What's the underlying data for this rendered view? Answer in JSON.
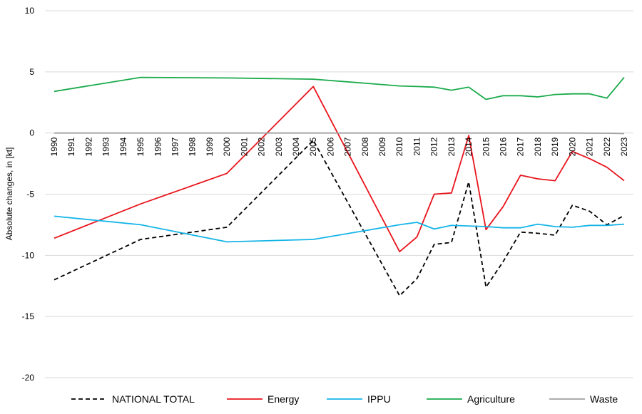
{
  "chart_data": {
    "type": "line",
    "title": "",
    "xlabel": "",
    "ylabel": "Absolute changes, in [kt]",
    "ylim": [
      -20,
      10
    ],
    "yticks": [
      10,
      5,
      0,
      -5,
      -10,
      -15,
      -20
    ],
    "grid": "horizontal",
    "legend": "bottom",
    "categories": [
      "1990",
      "1991",
      "1992",
      "1993",
      "1994",
      "1995",
      "1996",
      "1997",
      "1998",
      "1999",
      "2000",
      "2001",
      "2002",
      "2003",
      "2004",
      "2005",
      "2006",
      "2007",
      "2008",
      "2009",
      "2010",
      "2011",
      "2012",
      "2013",
      "2014",
      "2015",
      "2016",
      "2017",
      "2018",
      "2019",
      "2020",
      "2021",
      "2022",
      "2023"
    ],
    "x_positions": [
      1990,
      1991,
      1992,
      1993,
      1994,
      1995,
      1996,
      1997,
      1998,
      1999,
      2000,
      2001,
      2002,
      2003,
      2004,
      2005,
      2006,
      2007,
      2008,
      2009,
      2010,
      2011,
      2012,
      2013,
      2014,
      2015,
      2016,
      2017,
      2018,
      2019,
      2020,
      2021,
      2022,
      2023
    ],
    "series": [
      {
        "name": "NATIONAL TOTAL",
        "color": "#000000",
        "dash": "dashed",
        "x": [
          1990,
          1995,
          2000,
          2005,
          2010,
          2011,
          2012,
          2013,
          2014,
          2015,
          2016,
          2017,
          2018,
          2019,
          2020,
          2021,
          2022,
          2023
        ],
        "values": [
          -12.0,
          -8.7,
          -7.7,
          -0.6,
          -13.3,
          -11.9,
          -9.1,
          -8.95,
          -4.0,
          -12.6,
          -10.5,
          -8.1,
          -8.2,
          -8.35,
          -5.9,
          -6.4,
          -7.5,
          -6.75
        ]
      },
      {
        "name": "Energy",
        "color": "#e8141c",
        "dash": "solid",
        "x": [
          1990,
          1995,
          2000,
          2005,
          2010,
          2011,
          2012,
          2013,
          2014,
          2015,
          2016,
          2017,
          2018,
          2019,
          2020,
          2021,
          2022,
          2023
        ],
        "values": [
          -8.6,
          -5.8,
          -3.3,
          3.8,
          -9.7,
          -8.5,
          -5.0,
          -4.9,
          -0.2,
          -7.9,
          -6.0,
          -3.45,
          -3.75,
          -3.9,
          -1.5,
          -2.1,
          -2.8,
          -3.9
        ]
      },
      {
        "name": "IPPU",
        "color": "#14b4e8",
        "dash": "solid",
        "x": [
          1990,
          1995,
          2000,
          2005,
          2010,
          2011,
          2012,
          2013,
          2014,
          2015,
          2016,
          2017,
          2018,
          2019,
          2020,
          2021,
          2022,
          2023
        ],
        "values": [
          -6.8,
          -7.5,
          -8.9,
          -8.7,
          -7.5,
          -7.3,
          -7.85,
          -7.55,
          -7.6,
          -7.65,
          -7.75,
          -7.75,
          -7.45,
          -7.65,
          -7.7,
          -7.55,
          -7.55,
          -7.45
        ]
      },
      {
        "name": "Agriculture",
        "color": "#1aaa4b",
        "dash": "solid",
        "x": [
          1990,
          1995,
          2000,
          2005,
          2010,
          2011,
          2012,
          2013,
          2014,
          2015,
          2016,
          2017,
          2018,
          2019,
          2020,
          2021,
          2022,
          2023
        ],
        "values": [
          3.4,
          4.55,
          4.5,
          4.4,
          3.85,
          3.8,
          3.75,
          3.5,
          3.75,
          2.75,
          3.05,
          3.05,
          2.95,
          3.15,
          3.2,
          3.2,
          2.85,
          4.55
        ]
      },
      {
        "name": "Waste",
        "color": "#a0a0a0",
        "dash": "solid",
        "x": [
          1990,
          1995,
          2000,
          2005,
          2010,
          2015,
          2020,
          2022,
          2023
        ],
        "values": [
          0.0,
          0.0,
          0.0,
          0.0,
          0.0,
          0.0,
          0.0,
          -0.02,
          -0.05
        ]
      }
    ]
  }
}
